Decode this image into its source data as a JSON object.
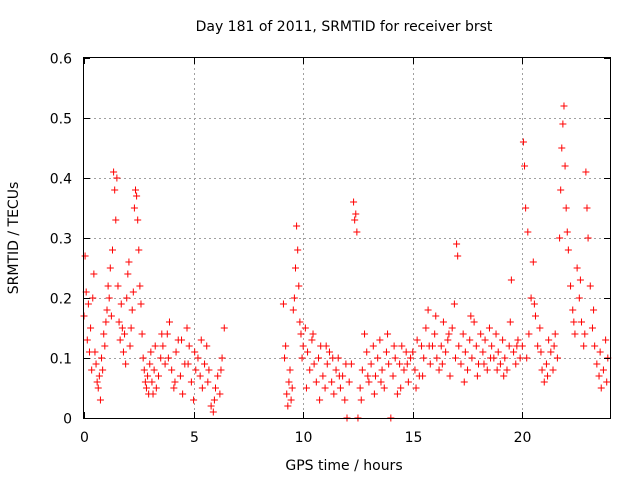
{
  "chart_data": {
    "type": "scatter",
    "title": "Day 181 of 2011, SRMTID for receiver brst",
    "xlabel": "GPS time / hours",
    "ylabel": "SRMTID / TECUs",
    "xlim": [
      0,
      24
    ],
    "ylim": [
      0,
      0.6
    ],
    "xticks": [
      0,
      5,
      10,
      15,
      20
    ],
    "xtick_labels": [
      "0",
      "5",
      "10",
      "15",
      "20"
    ],
    "yticks": [
      0,
      0.1,
      0.2,
      0.3,
      0.4,
      0.5,
      0.6
    ],
    "ytick_labels": [
      "0",
      "0.1",
      "0.2",
      "0.3",
      "0.4",
      "0.5",
      "0.6"
    ],
    "grid": true,
    "marker": "+",
    "color": "#ff0000",
    "series": [
      {
        "name": "SRMTID",
        "points": [
          [
            0.0,
            0.17
          ],
          [
            0.05,
            0.27
          ],
          [
            0.1,
            0.21
          ],
          [
            0.15,
            0.13
          ],
          [
            0.2,
            0.19
          ],
          [
            0.25,
            0.11
          ],
          [
            0.3,
            0.15
          ],
          [
            0.35,
            0.08
          ],
          [
            0.4,
            0.2
          ],
          [
            0.45,
            0.24
          ],
          [
            0.5,
            0.11
          ],
          [
            0.55,
            0.09
          ],
          [
            0.6,
            0.06
          ],
          [
            0.65,
            0.05
          ],
          [
            0.7,
            0.07
          ],
          [
            0.75,
            0.03
          ],
          [
            0.8,
            0.1
          ],
          [
            0.85,
            0.08
          ],
          [
            0.9,
            0.14
          ],
          [
            0.95,
            0.12
          ],
          [
            1.0,
            0.16
          ],
          [
            1.05,
            0.18
          ],
          [
            1.1,
            0.22
          ],
          [
            1.15,
            0.2
          ],
          [
            1.2,
            0.25
          ],
          [
            1.25,
            0.17
          ],
          [
            1.3,
            0.28
          ],
          [
            1.35,
            0.41
          ],
          [
            1.4,
            0.38
          ],
          [
            1.45,
            0.33
          ],
          [
            1.5,
            0.4
          ],
          [
            1.55,
            0.22
          ],
          [
            1.6,
            0.16
          ],
          [
            1.65,
            0.13
          ],
          [
            1.7,
            0.19
          ],
          [
            1.75,
            0.15
          ],
          [
            1.8,
            0.11
          ],
          [
            1.85,
            0.14
          ],
          [
            1.9,
            0.09
          ],
          [
            1.95,
            0.2
          ],
          [
            2.0,
            0.24
          ],
          [
            2.05,
            0.26
          ],
          [
            2.1,
            0.12
          ],
          [
            2.15,
            0.15
          ],
          [
            2.2,
            0.18
          ],
          [
            2.25,
            0.21
          ],
          [
            2.3,
            0.35
          ],
          [
            2.35,
            0.38
          ],
          [
            2.4,
            0.37
          ],
          [
            2.45,
            0.33
          ],
          [
            2.5,
            0.28
          ],
          [
            2.55,
            0.22
          ],
          [
            2.6,
            0.19
          ],
          [
            2.65,
            0.14
          ],
          [
            2.7,
            0.1
          ],
          [
            2.75,
            0.08
          ],
          [
            2.8,
            0.06
          ],
          [
            2.85,
            0.05
          ],
          [
            2.9,
            0.07
          ],
          [
            2.95,
            0.04
          ],
          [
            3.0,
            0.09
          ],
          [
            3.05,
            0.11
          ],
          [
            3.1,
            0.06
          ],
          [
            3.15,
            0.04
          ],
          [
            3.2,
            0.08
          ],
          [
            3.3,
            0.05
          ],
          [
            3.4,
            0.07
          ],
          [
            3.5,
            0.1
          ],
          [
            3.6,
            0.12
          ],
          [
            3.7,
            0.09
          ],
          [
            3.8,
            0.14
          ],
          [
            3.9,
            0.16
          ],
          [
            4.0,
            0.08
          ],
          [
            4.1,
            0.05
          ],
          [
            4.2,
            0.11
          ],
          [
            4.3,
            0.13
          ],
          [
            4.4,
            0.07
          ],
          [
            4.5,
            0.04
          ],
          [
            4.6,
            0.09
          ],
          [
            4.7,
            0.15
          ],
          [
            4.8,
            0.12
          ],
          [
            4.9,
            0.06
          ],
          [
            5.0,
            0.03
          ],
          [
            5.1,
            0.08
          ],
          [
            5.2,
            0.1
          ],
          [
            5.3,
            0.07
          ],
          [
            5.4,
            0.05
          ],
          [
            5.5,
            0.09
          ],
          [
            5.6,
            0.12
          ],
          [
            5.7,
            0.08
          ],
          [
            5.8,
            0.02
          ],
          [
            5.9,
            0.01
          ],
          [
            6.0,
            0.05
          ],
          [
            6.1,
            0.07
          ],
          [
            6.2,
            0.04
          ],
          [
            6.3,
            0.1
          ],
          [
            6.4,
            0.15
          ],
          [
            3.25,
            0.12
          ],
          [
            3.55,
            0.14
          ],
          [
            3.85,
            0.1
          ],
          [
            4.15,
            0.06
          ],
          [
            4.45,
            0.13
          ],
          [
            4.75,
            0.09
          ],
          [
            5.05,
            0.11
          ],
          [
            5.35,
            0.13
          ],
          [
            5.65,
            0.06
          ],
          [
            5.95,
            0.03
          ],
          [
            6.25,
            0.08
          ],
          [
            9.1,
            0.19
          ],
          [
            9.15,
            0.1
          ],
          [
            9.2,
            0.12
          ],
          [
            9.25,
            0.04
          ],
          [
            9.3,
            0.02
          ],
          [
            9.35,
            0.06
          ],
          [
            9.4,
            0.08
          ],
          [
            9.45,
            0.03
          ],
          [
            9.5,
            0.05
          ],
          [
            9.55,
            0.18
          ],
          [
            9.6,
            0.2
          ],
          [
            9.65,
            0.25
          ],
          [
            9.7,
            0.32
          ],
          [
            9.75,
            0.28
          ],
          [
            9.8,
            0.22
          ],
          [
            9.85,
            0.16
          ],
          [
            9.9,
            0.14
          ],
          [
            9.95,
            0.1
          ],
          [
            10.0,
            0.12
          ],
          [
            10.1,
            0.15
          ],
          [
            10.2,
            0.11
          ],
          [
            10.3,
            0.08
          ],
          [
            10.4,
            0.13
          ],
          [
            10.5,
            0.09
          ],
          [
            10.6,
            0.06
          ],
          [
            10.7,
            0.1
          ],
          [
            10.8,
            0.12
          ],
          [
            10.9,
            0.07
          ],
          [
            11.0,
            0.05
          ],
          [
            11.1,
            0.09
          ],
          [
            11.2,
            0.11
          ],
          [
            11.3,
            0.06
          ],
          [
            11.4,
            0.04
          ],
          [
            11.5,
            0.08
          ],
          [
            11.6,
            0.1
          ],
          [
            11.7,
            0.05
          ],
          [
            11.8,
            0.07
          ],
          [
            11.9,
            0.03
          ],
          [
            12.0,
            0.0
          ],
          [
            12.1,
            0.06
          ],
          [
            12.2,
            0.09
          ],
          [
            12.3,
            0.36
          ],
          [
            12.35,
            0.33
          ],
          [
            12.4,
            0.34
          ],
          [
            12.45,
            0.31
          ],
          [
            12.5,
            0.0
          ],
          [
            12.6,
            0.05
          ],
          [
            12.7,
            0.08
          ],
          [
            12.8,
            0.14
          ],
          [
            12.9,
            0.11
          ],
          [
            13.0,
            0.06
          ],
          [
            13.1,
            0.09
          ],
          [
            13.2,
            0.12
          ],
          [
            13.3,
            0.07
          ],
          [
            13.4,
            0.1
          ],
          [
            13.5,
            0.13
          ],
          [
            13.6,
            0.08
          ],
          [
            13.7,
            0.05
          ],
          [
            13.8,
            0.11
          ],
          [
            13.9,
            0.09
          ],
          [
            14.0,
            0.0
          ],
          [
            14.1,
            0.07
          ],
          [
            14.2,
            0.1
          ],
          [
            14.3,
            0.04
          ],
          [
            14.4,
            0.09
          ],
          [
            14.5,
            0.12
          ],
          [
            14.6,
            0.08
          ],
          [
            14.7,
            0.11
          ],
          [
            14.8,
            0.06
          ],
          [
            14.9,
            0.1
          ],
          [
            10.15,
            0.05
          ],
          [
            10.45,
            0.14
          ],
          [
            10.75,
            0.03
          ],
          [
            11.05,
            0.12
          ],
          [
            11.35,
            0.1
          ],
          [
            11.65,
            0.07
          ],
          [
            11.95,
            0.09
          ],
          [
            12.65,
            0.03
          ],
          [
            12.95,
            0.07
          ],
          [
            13.25,
            0.04
          ],
          [
            13.55,
            0.06
          ],
          [
            13.85,
            0.14
          ],
          [
            14.15,
            0.12
          ],
          [
            14.45,
            0.05
          ],
          [
            14.75,
            0.09
          ],
          [
            15.0,
            0.11
          ],
          [
            15.1,
            0.08
          ],
          [
            15.2,
            0.13
          ],
          [
            15.3,
            0.07
          ],
          [
            15.4,
            0.12
          ],
          [
            15.5,
            0.1
          ],
          [
            15.6,
            0.15
          ],
          [
            15.7,
            0.18
          ],
          [
            15.8,
            0.09
          ],
          [
            15.9,
            0.12
          ],
          [
            16.0,
            0.14
          ],
          [
            16.1,
            0.1
          ],
          [
            16.2,
            0.08
          ],
          [
            16.3,
            0.12
          ],
          [
            16.4,
            0.16
          ],
          [
            16.5,
            0.11
          ],
          [
            16.6,
            0.13
          ],
          [
            16.7,
            0.07
          ],
          [
            16.8,
            0.15
          ],
          [
            16.9,
            0.19
          ],
          [
            17.0,
            0.29
          ],
          [
            17.05,
            0.27
          ],
          [
            17.1,
            0.12
          ],
          [
            17.2,
            0.09
          ],
          [
            17.3,
            0.14
          ],
          [
            17.4,
            0.11
          ],
          [
            17.5,
            0.08
          ],
          [
            17.6,
            0.13
          ],
          [
            17.7,
            0.1
          ],
          [
            17.8,
            0.16
          ],
          [
            17.9,
            0.12
          ],
          [
            18.0,
            0.09
          ],
          [
            18.1,
            0.14
          ],
          [
            18.2,
            0.11
          ],
          [
            18.3,
            0.13
          ],
          [
            18.4,
            0.08
          ],
          [
            18.5,
            0.15
          ],
          [
            18.6,
            0.12
          ],
          [
            18.7,
            0.1
          ],
          [
            18.8,
            0.14
          ],
          [
            18.9,
            0.11
          ],
          [
            19.0,
            0.09
          ],
          [
            19.1,
            0.13
          ],
          [
            19.2,
            0.1
          ],
          [
            19.3,
            0.08
          ],
          [
            19.4,
            0.12
          ],
          [
            19.5,
            0.23
          ],
          [
            19.6,
            0.11
          ],
          [
            19.7,
            0.09
          ],
          [
            19.8,
            0.13
          ],
          [
            19.9,
            0.1
          ],
          [
            20.0,
            0.12
          ],
          [
            20.05,
            0.46
          ],
          [
            20.1,
            0.42
          ],
          [
            20.15,
            0.35
          ],
          [
            20.2,
            0.1
          ],
          [
            20.3,
            0.14
          ],
          [
            20.4,
            0.2
          ],
          [
            20.5,
            0.26
          ],
          [
            20.6,
            0.17
          ],
          [
            20.7,
            0.12
          ],
          [
            20.8,
            0.15
          ],
          [
            20.9,
            0.08
          ],
          [
            21.0,
            0.06
          ],
          [
            21.1,
            0.09
          ],
          [
            21.2,
            0.13
          ],
          [
            21.3,
            0.11
          ],
          [
            21.4,
            0.08
          ],
          [
            21.5,
            0.14
          ],
          [
            21.6,
            0.1
          ],
          [
            21.7,
            0.3
          ],
          [
            21.75,
            0.38
          ],
          [
            21.8,
            0.45
          ],
          [
            21.85,
            0.49
          ],
          [
            21.9,
            0.52
          ],
          [
            21.95,
            0.42
          ],
          [
            22.0,
            0.35
          ],
          [
            22.1,
            0.28
          ],
          [
            22.2,
            0.22
          ],
          [
            22.3,
            0.18
          ],
          [
            22.4,
            0.14
          ],
          [
            22.5,
            0.25
          ],
          [
            22.6,
            0.2
          ],
          [
            22.7,
            0.16
          ],
          [
            22.8,
            0.12
          ],
          [
            22.9,
            0.41
          ],
          [
            22.95,
            0.35
          ],
          [
            23.0,
            0.3
          ],
          [
            23.1,
            0.22
          ],
          [
            23.2,
            0.15
          ],
          [
            23.3,
            0.12
          ],
          [
            23.4,
            0.09
          ],
          [
            23.5,
            0.07
          ],
          [
            23.6,
            0.05
          ],
          [
            23.7,
            0.08
          ],
          [
            23.8,
            0.13
          ],
          [
            23.9,
            0.1
          ],
          [
            15.15,
            0.05
          ],
          [
            15.45,
            0.07
          ],
          [
            15.75,
            0.12
          ],
          [
            16.05,
            0.17
          ],
          [
            16.35,
            0.09
          ],
          [
            16.65,
            0.14
          ],
          [
            16.95,
            0.1
          ],
          [
            17.35,
            0.06
          ],
          [
            17.65,
            0.17
          ],
          [
            17.95,
            0.07
          ],
          [
            18.25,
            0.09
          ],
          [
            18.55,
            0.1
          ],
          [
            18.85,
            0.08
          ],
          [
            19.15,
            0.07
          ],
          [
            19.45,
            0.16
          ],
          [
            19.75,
            0.12
          ],
          [
            20.25,
            0.31
          ],
          [
            20.55,
            0.19
          ],
          [
            20.85,
            0.11
          ],
          [
            21.15,
            0.07
          ],
          [
            21.45,
            0.12
          ],
          [
            22.05,
            0.31
          ],
          [
            22.35,
            0.16
          ],
          [
            22.65,
            0.23
          ],
          [
            22.85,
            0.14
          ],
          [
            23.25,
            0.18
          ],
          [
            23.55,
            0.11
          ],
          [
            23.85,
            0.06
          ]
        ]
      }
    ]
  }
}
